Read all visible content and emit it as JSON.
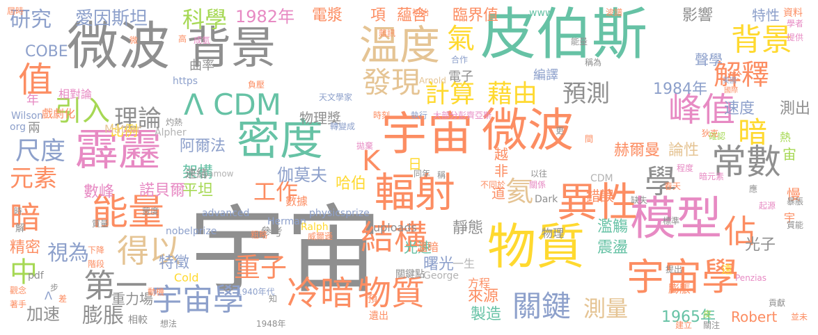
{
  "palette": {
    "gray": "#8f8f8f",
    "green": "#66c2a5",
    "orange": "#fc8d62",
    "blue": "#8da0cb",
    "pink": "#e78ac3",
    "lime": "#a6d854",
    "yellow": "#ffd92f",
    "tan": "#e5c494",
    "lightgray": "#b3b3b3"
  },
  "words": [
    {
      "text": "宇宙",
      "color": "gray"
    },
    {
      "text": "皮伯斯",
      "color": "green"
    },
    {
      "text": "微波",
      "color": "gray"
    },
    {
      "text": "背景",
      "color": "gray"
    },
    {
      "text": "宇宙",
      "color": "orange"
    },
    {
      "text": "微波",
      "color": "orange"
    },
    {
      "text": "溫度",
      "color": "tan"
    },
    {
      "text": "物質",
      "color": "yellow"
    },
    {
      "text": "模型",
      "color": "pink"
    },
    {
      "text": "密度",
      "color": "green"
    },
    {
      "text": "霹靂",
      "color": "pink"
    },
    {
      "text": "宇宙學",
      "color": "orange"
    },
    {
      "text": "輻射",
      "color": "orange"
    },
    {
      "text": "異性",
      "color": "orange"
    },
    {
      "text": "能量",
      "color": "orange"
    },
    {
      "text": "常數",
      "color": "gray"
    },
    {
      "text": "Λ CDM",
      "color": "green"
    },
    {
      "text": "結構",
      "color": "orange"
    },
    {
      "text": "冷暗",
      "color": "orange"
    },
    {
      "text": "物質",
      "color": "orange"
    },
    {
      "text": "宇宙學",
      "color": "blue"
    },
    {
      "text": "發現",
      "color": "tan"
    },
    {
      "text": "計算",
      "color": "yellow"
    },
    {
      "text": "藉由",
      "color": "yellow"
    },
    {
      "text": "背景",
      "color": "yellow"
    },
    {
      "text": "峰值",
      "color": "pink"
    },
    {
      "text": "解釋",
      "color": "orange"
    },
    {
      "text": "得以",
      "color": "tan"
    },
    {
      "text": "值",
      "color": "orange"
    },
    {
      "text": "第一",
      "color": "gray"
    },
    {
      "text": "理論",
      "color": "gray"
    },
    {
      "text": "關鍵",
      "color": "blue"
    },
    {
      "text": "預測",
      "color": "gray"
    },
    {
      "text": "科學",
      "color": "lime"
    },
    {
      "text": "研究",
      "color": "blue"
    },
    {
      "text": "愛因斯坦",
      "color": "blue"
    },
    {
      "text": "1982年",
      "color": "pink"
    },
    {
      "text": "電漿",
      "color": "orange"
    },
    {
      "text": "項",
      "color": "orange"
    },
    {
      "text": "蘊含",
      "color": "orange"
    },
    {
      "text": "臨界值",
      "color": "orange"
    },
    {
      "text": "影響",
      "color": "gray"
    },
    {
      "text": "特性",
      "color": "blue"
    },
    {
      "text": "資料",
      "color": "orange"
    },
    {
      "text": "氣",
      "color": "yellow"
    },
    {
      "text": "COBE",
      "color": "blue"
    },
    {
      "text": "引入",
      "color": "lime"
    },
    {
      "text": "尺度",
      "color": "blue"
    },
    {
      "text": "元素",
      "color": "orange"
    },
    {
      "text": "暗",
      "color": "orange"
    },
    {
      "text": "中",
      "color": "lime"
    },
    {
      "text": "K",
      "color": "orange"
    },
    {
      "text": "氦",
      "color": "tan"
    },
    {
      "text": "學",
      "color": "gray"
    },
    {
      "text": "暗",
      "color": "yellow"
    },
    {
      "text": "1984年",
      "color": "blue"
    },
    {
      "text": "速度",
      "color": "blue"
    },
    {
      "text": "測出",
      "color": "gray"
    },
    {
      "text": "赫爾曼",
      "color": "orange"
    },
    {
      "text": "論性",
      "color": "tan"
    },
    {
      "text": "佔",
      "color": "orange"
    },
    {
      "text": "重子",
      "color": "orange"
    },
    {
      "text": "視為",
      "color": "blue"
    },
    {
      "text": "精密",
      "color": "orange"
    },
    {
      "text": "加速",
      "color": "gray"
    },
    {
      "text": "膨脹",
      "color": "gray"
    },
    {
      "text": "重力場",
      "color": "gray"
    },
    {
      "text": "測量",
      "color": "tan"
    },
    {
      "text": "1965年",
      "color": "green"
    },
    {
      "text": "Robert",
      "color": "orange"
    },
    {
      "text": "工作",
      "color": "orange"
    },
    {
      "text": "數峰",
      "color": "pink"
    },
    {
      "text": "諾貝爾",
      "color": "pink"
    },
    {
      "text": "伽莫夫",
      "color": "blue"
    },
    {
      "text": "哈伯",
      "color": "yellow"
    },
    {
      "text": "平坦",
      "color": "lime"
    },
    {
      "text": "架構",
      "color": "green"
    },
    {
      "text": "阿爾法",
      "color": "blue"
    },
    {
      "text": "比例",
      "color": "yellow"
    },
    {
      "text": "物理獎",
      "color": "gray"
    },
    {
      "text": "Matter",
      "color": "tan"
    },
    {
      "text": "Alpher",
      "color": "lightgray"
    },
    {
      "text": "特徵",
      "color": "blue"
    },
    {
      "text": "Cold",
      "color": "yellow"
    },
    {
      "text": "光速",
      "color": "green"
    },
    {
      "text": "靜態",
      "color": "gray"
    },
    {
      "text": "曙光",
      "color": "blue"
    },
    {
      "text": "震盪",
      "color": "green"
    },
    {
      "text": "光子",
      "color": "gray"
    },
    {
      "text": "濫觴",
      "color": "green"
    },
    {
      "text": "來源",
      "color": "orange"
    },
    {
      "text": "製造",
      "color": "green"
    },
    {
      "text": "膨脹",
      "color": "orange"
    },
    {
      "text": "方程",
      "color": "orange"
    },
    {
      "text": "一生",
      "color": "lightgray"
    },
    {
      "text": "溫暗",
      "color": "orange"
    },
    {
      "text": "物理",
      "color": "gray"
    },
    {
      "text": "uploads",
      "color": "gray"
    },
    {
      "text": "參考",
      "color": "gray"
    },
    {
      "text": "nobelprize",
      "color": "blue"
    },
    {
      "text": "advanced",
      "color": "blue"
    },
    {
      "text": "physicsprize",
      "color": "blue"
    },
    {
      "text": "Herman",
      "color": "blue"
    },
    {
      "text": "Dark",
      "color": "gray"
    },
    {
      "text": "CDM",
      "color": "lightgray"
    },
    {
      "text": "https",
      "color": "blue"
    },
    {
      "text": "www",
      "color": "green"
    },
    {
      "text": "Wilson",
      "color": "blue"
    },
    {
      "text": "org",
      "color": "blue"
    },
    {
      "text": "pdf",
      "color": "gray"
    },
    {
      "text": "Ralph",
      "color": "yellow"
    },
    {
      "text": "George",
      "color": "lightgray"
    },
    {
      "text": "Penzias",
      "color": "pink"
    },
    {
      "text": "Arnold",
      "color": "tan"
    },
    {
      "text": "Gamow",
      "color": "lightgray"
    },
    {
      "text": "曲率",
      "color": "gray"
    },
    {
      "text": "電子",
      "color": "gray"
    },
    {
      "text": "聲學",
      "color": "blue"
    },
    {
      "text": "編譯",
      "color": "blue"
    },
    {
      "text": "小於",
      "color": "orange"
    },
    {
      "text": "相對論",
      "color": "pink"
    },
    {
      "text": "戲劇化",
      "color": "orange"
    },
    {
      "text": "天文學家",
      "color": "blue"
    },
    {
      "text": "年",
      "color": "pink"
    },
    {
      "text": "兩",
      "color": "gray"
    },
    {
      "text": "越",
      "color": "orange"
    },
    {
      "text": "非",
      "color": "orange"
    },
    {
      "text": "日",
      "color": "yellow"
    },
    {
      "text": "道",
      "color": "orange"
    },
    {
      "text": "錯誤",
      "color": "orange"
    },
    {
      "text": "連結",
      "color": "gray"
    },
    {
      "text": "數據",
      "color": "orange"
    },
    {
      "text": "1940年代",
      "color": "blue"
    },
    {
      "text": "1948年",
      "color": "gray"
    },
    {
      "text": "動機",
      "color": "orange"
    },
    {
      "text": "相較",
      "color": "gray"
    },
    {
      "text": "想法",
      "color": "gray"
    },
    {
      "text": "觀念",
      "color": "orange"
    },
    {
      "text": "著手",
      "color": "orange"
    },
    {
      "text": "Λ",
      "color": "blue"
    },
    {
      "text": "差",
      "color": "orange"
    },
    {
      "text": "步",
      "color": "gray"
    },
    {
      "text": "知",
      "color": "gray"
    },
    {
      "text": "預",
      "color": "orange"
    },
    {
      "text": "遺出",
      "color": "orange"
    },
    {
      "text": "關鍵點",
      "color": "gray"
    },
    {
      "text": "粗略",
      "color": "orange"
    },
    {
      "text": "威爾遜",
      "color": "orange"
    },
    {
      "text": "下降",
      "color": "orange"
    },
    {
      "text": "階段",
      "color": "orange"
    },
    {
      "text": "豐度",
      "color": "gray"
    },
    {
      "text": "質量",
      "color": "gray"
    },
    {
      "text": "時",
      "color": "gray"
    },
    {
      "text": "解",
      "color": "gray"
    },
    {
      "text": "灼熱",
      "color": "gray"
    },
    {
      "text": "轉變成",
      "color": "blue"
    },
    {
      "text": "時刻",
      "color": "orange"
    },
    {
      "text": "執行",
      "color": "blue"
    },
    {
      "text": "大部分",
      "color": "pink"
    },
    {
      "text": "彭齊亞斯",
      "color": "pink"
    },
    {
      "text": "拋棄",
      "color": "pink"
    },
    {
      "text": "同年",
      "color": "gray"
    },
    {
      "text": "稱",
      "color": "gray"
    },
    {
      "text": "以往",
      "color": "gray"
    },
    {
      "text": "不同於",
      "color": "orange"
    },
    {
      "text": "關係",
      "color": "pink"
    },
    {
      "text": "缺失",
      "color": "gray"
    },
    {
      "text": "標準",
      "color": "gray"
    },
    {
      "text": "暗元素",
      "color": "pink"
    },
    {
      "text": "春天",
      "color": "orange"
    },
    {
      "text": "程度",
      "color": "pink"
    },
    {
      "text": "確認",
      "color": "lime"
    },
    {
      "text": "更",
      "color": "gray"
    },
    {
      "text": "狄克",
      "color": "orange"
    },
    {
      "text": "間",
      "color": "orange"
    },
    {
      "text": "美國",
      "color": "blue"
    },
    {
      "text": "國際",
      "color": "orange"
    },
    {
      "text": "提出",
      "color": "gray"
    },
    {
      "text": "貢獻",
      "color": "gray"
    },
    {
      "text": "建立",
      "color": "orange"
    },
    {
      "text": "關注",
      "color": "gray"
    },
    {
      "text": "遠",
      "color": "yellow"
    },
    {
      "text": "應",
      "color": "gray"
    },
    {
      "text": "熱",
      "color": "lime"
    },
    {
      "text": "宙",
      "color": "lime"
    },
    {
      "text": "慢",
      "color": "orange"
    },
    {
      "text": "宇",
      "color": "orange"
    },
    {
      "text": "並未",
      "color": "orange"
    },
    {
      "text": "暴脹",
      "color": "gray"
    },
    {
      "text": "質能",
      "color": "gray"
    },
    {
      "text": "起源",
      "color": "pink"
    },
    {
      "text": "波譜",
      "color": "orange"
    },
    {
      "text": "學者",
      "color": "pink"
    },
    {
      "text": "提供",
      "color": "pink"
    },
    {
      "text": "稱為",
      "color": "gray"
    },
    {
      "text": "合作",
      "color": "blue"
    },
    {
      "text": "能量",
      "color": "gray"
    },
    {
      "text": "成氫",
      "color": "pink"
    },
    {
      "text": "負壓",
      "color": "orange"
    },
    {
      "text": "初始",
      "color": "orange"
    },
    {
      "text": "雜訊",
      "color": "orange"
    },
    {
      "text": "高",
      "color": "orange"
    },
    {
      "text": "微",
      "color": "orange"
    },
    {
      "text": "皮",
      "color": "lime"
    },
    {
      "text": "屆時",
      "color": "orange"
    }
  ]
}
